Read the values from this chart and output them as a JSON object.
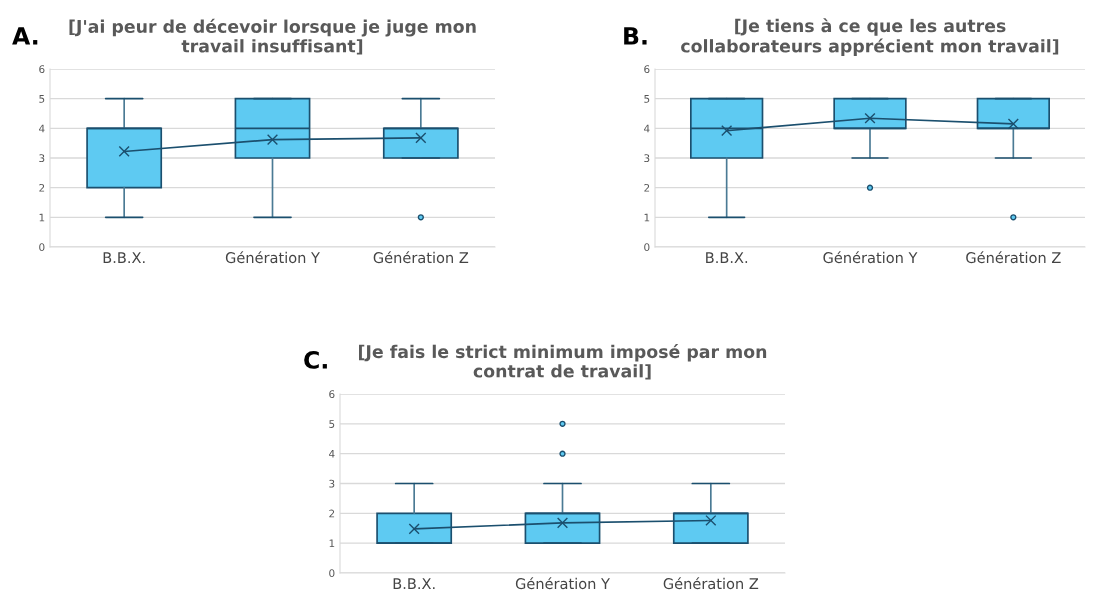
{
  "chart_data": [
    {
      "type": "box",
      "title": "[J'ai peur de décevoir lorsque je juge mon travail insuffisant]",
      "annotations": [
        "A."
      ],
      "categories": [
        "B.B.X.",
        "Génération Y",
        "Génération Z"
      ],
      "ylim": [
        0,
        6
      ],
      "yticks": [
        0,
        1,
        2,
        3,
        4,
        5,
        6
      ],
      "grid": "y",
      "series": [
        {
          "type": "box",
          "color": "#5ecaf2",
          "marker": "cross",
          "boxes": [
            {
              "low": 1,
              "q1": 2,
              "median": 4,
              "q3": 4,
              "high": 5,
              "mean": 3.22
            },
            {
              "low": 1,
              "q1": 3,
              "median": 4,
              "q3": 5,
              "high": 5,
              "mean": 3.62
            },
            {
              "low": 3,
              "q1": 3,
              "median": 4,
              "q3": 4,
              "high": 5,
              "mean": 3.68,
              "outliers": [
                1
              ]
            }
          ]
        },
        {
          "type": "line",
          "color": "#1b4f6e",
          "marker": "none",
          "values": [
            3.22,
            3.62,
            3.68
          ]
        }
      ]
    },
    {
      "type": "box",
      "title": "[Je tiens à ce que les autres collaborateurs apprécient mon travail]",
      "annotations": [
        "B."
      ],
      "categories": [
        "B.B.X.",
        "Génération Y",
        "Génération Z"
      ],
      "ylim": [
        0,
        6
      ],
      "yticks": [
        0,
        1,
        2,
        3,
        4,
        5,
        6
      ],
      "grid": "y",
      "series": [
        {
          "type": "box",
          "color": "#5ecaf2",
          "marker": "cross",
          "boxes": [
            {
              "low": 1,
              "q1": 3,
              "median": 4,
              "q3": 5,
              "high": 5,
              "mean": 3.92
            },
            {
              "low": 3,
              "q1": 4,
              "median": 4,
              "q3": 5,
              "high": 5,
              "mean": 4.34,
              "outliers": [
                2
              ]
            },
            {
              "low": 3,
              "q1": 4,
              "median": 4,
              "q3": 5,
              "high": 5,
              "mean": 4.15,
              "outliers": [
                1
              ]
            }
          ]
        },
        {
          "type": "line",
          "color": "#1b4f6e",
          "marker": "none",
          "values": [
            3.92,
            4.34,
            4.15
          ]
        }
      ]
    },
    {
      "type": "box",
      "title": "[Je fais le strict minimum imposé par mon contrat de travail]",
      "annotations": [
        "C."
      ],
      "categories": [
        "B.B.X.",
        "Génération Y",
        "Génération Z"
      ],
      "ylim": [
        0,
        6
      ],
      "yticks": [
        0,
        1,
        2,
        3,
        4,
        5,
        6
      ],
      "grid": "y",
      "series": [
        {
          "type": "box",
          "color": "#5ecaf2",
          "marker": "cross",
          "boxes": [
            {
              "low": 1,
              "q1": 1,
              "median": 1,
              "q3": 2,
              "high": 3,
              "mean": 1.48
            },
            {
              "low": 1,
              "q1": 1,
              "median": 2,
              "q3": 2,
              "high": 3,
              "mean": 1.68,
              "outliers": [
                4,
                5
              ]
            },
            {
              "low": 1,
              "q1": 1,
              "median": 2,
              "q3": 2,
              "high": 3,
              "mean": 1.76
            }
          ]
        },
        {
          "type": "line",
          "color": "#1b4f6e",
          "marker": "none",
          "values": [
            1.48,
            1.68,
            1.76
          ]
        }
      ]
    }
  ]
}
